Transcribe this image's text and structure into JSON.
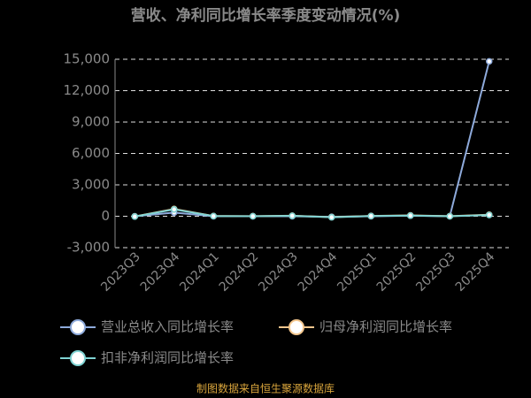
{
  "chart_data": {
    "type": "line",
    "title": "营收、净利同比增长率季度变动情况(%)",
    "categories": [
      "2023Q3",
      "2023Q4",
      "2024Q1",
      "2024Q2",
      "2024Q3",
      "2024Q4",
      "2025Q1",
      "2025Q2",
      "2025Q3",
      "2025Q4"
    ],
    "series": [
      {
        "name": "营业总收入同比增长率",
        "color": "#8eaadb",
        "values": [
          0,
          350,
          0,
          0,
          0,
          -50,
          0,
          50,
          0,
          14800
        ]
      },
      {
        "name": "归母净利润同比增长率",
        "color": "#f4c78e",
        "values": [
          -20,
          700,
          20,
          10,
          50,
          -80,
          30,
          80,
          10,
          150
        ]
      },
      {
        "name": "扣非净利润同比增长率",
        "color": "#7fd3d3",
        "values": [
          -30,
          650,
          10,
          0,
          40,
          -100,
          20,
          60,
          0,
          120
        ]
      }
    ],
    "ylim": [
      -3000,
      15000
    ],
    "yticks": [
      {
        "value": -3000,
        "label": "-3,000"
      },
      0,
      {
        "value": 3000,
        "label": "3,000"
      },
      {
        "value": 6000,
        "label": "6,000"
      },
      {
        "value": 9000,
        "label": "9,000"
      },
      {
        "value": 12000,
        "label": "12,000"
      },
      {
        "value": 15000,
        "label": "15,000"
      }
    ],
    "grid": true,
    "source": "制图数据来自恒生聚源数据库"
  }
}
